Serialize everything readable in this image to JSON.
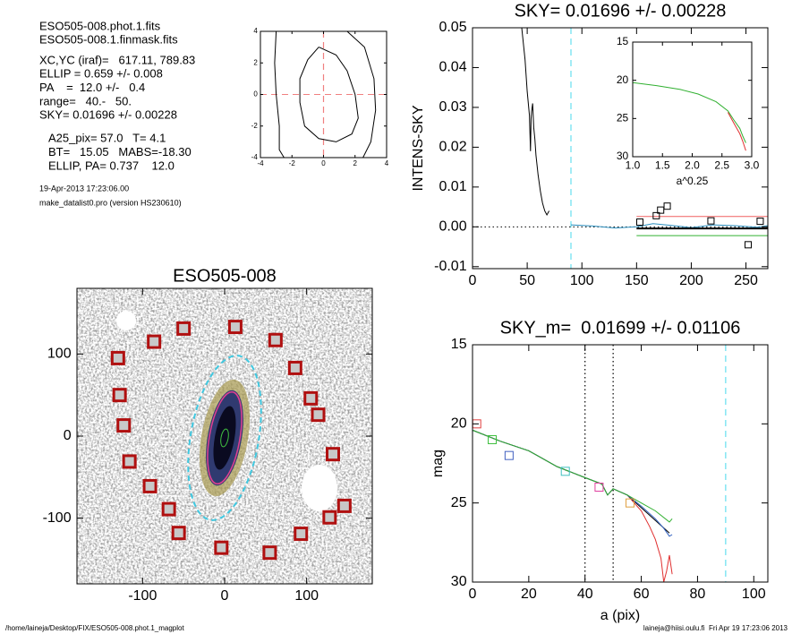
{
  "info": {
    "lines": [
      "ESO505-008.phot.1.fits",
      "ESO505-008.1.finmask.fits",
      "XC,YC (iraf)=   617.11, 789.83",
      "ELLIP = 0.659 +/- 0.008",
      "PA    =  12.0 +/-   0.4",
      "range=   40.-   50.",
      "SKY= 0.01696 +/- 0.00228"
    ],
    "params": [
      "A25_pix= 57.0   T= 4.1",
      "BT=   15.05   MABS=-18.30",
      "ELLIP, PA= 0.737    12.0"
    ],
    "date": "19-Apr-2013 17:23:06.00",
    "program": "make_datalist0.pro (version HS230610)"
  },
  "footer": {
    "left": "/home/laineja/Desktop/FIX/ESO505-008.phot.1_magplot",
    "right": "laineja@hiisi.oulu.fi  Fri Apr 19 17:23:06 2013"
  },
  "chart_data": [
    {
      "type": "contour",
      "xlim": [
        -4,
        4
      ],
      "ylim": [
        -4,
        4
      ],
      "xticks": [
        -4,
        -2,
        0,
        2,
        4
      ],
      "yticks": [
        -4,
        -2,
        0,
        2,
        4
      ],
      "vlines": [
        {
          "x": 0,
          "color": "#f08080",
          "dash": "dashed"
        }
      ],
      "hlines": [
        {
          "y": 0,
          "color": "#f08080",
          "dash": "dashed"
        }
      ],
      "series": [
        {
          "style": "line",
          "color": "#000000",
          "x": [
            -0.3,
            0.8,
            1.5,
            2.0,
            2.2,
            1.8,
            0.8,
            -0.3,
            -1.2,
            -1.5,
            -1.5,
            -1.0,
            -0.3
          ],
          "y": [
            3.0,
            2.5,
            1.5,
            0,
            -1.5,
            -2.5,
            -3.0,
            -2.8,
            -2.0,
            -0.5,
            1.0,
            2.2,
            3.0
          ]
        },
        {
          "style": "line",
          "color": "#000000",
          "x": [
            -3.0,
            -3.1,
            -3.0,
            -2.8,
            -2.8,
            -2.5
          ],
          "y": [
            4,
            2,
            0,
            -2,
            -3.5,
            -4
          ]
        },
        {
          "style": "line",
          "color": "#000000",
          "x": [
            1.5,
            2.6,
            3.2,
            3.3,
            3.0,
            2.5
          ],
          "y": [
            4,
            3,
            1,
            -1,
            -3,
            -4
          ]
        }
      ]
    },
    {
      "type": "line",
      "title": "SKY= 0.01696 +/- 0.00228",
      "ylabel": "INTENS-SKY",
      "xlim": [
        0,
        270
      ],
      "ylim": [
        -0.0105,
        0.05
      ],
      "xticks": [
        0,
        50,
        100,
        150,
        200,
        250
      ],
      "yticks": [
        -0.01,
        {
          "value": 0,
          "label": "0.00"
        },
        0.01,
        0.02,
        0.03,
        0.04,
        0.05
      ],
      "vlines": [
        {
          "x": 90,
          "color": "#66e0f0",
          "dash": "dashed"
        }
      ],
      "hlines": [
        {
          "y": 0,
          "color": "#000000",
          "dash": "dotted"
        }
      ],
      "series": [
        {
          "style": "line",
          "color": "#000000",
          "width": 1,
          "x": [
            45,
            48,
            50,
            52,
            53,
            53.5,
            54,
            55,
            56,
            57,
            58,
            60,
            62,
            64,
            66,
            68,
            70
          ],
          "y": [
            0.05,
            0.042,
            0.034,
            0.028,
            0.019,
            0.027,
            0.029,
            0.031,
            0.025,
            0.022,
            0.018,
            0.013,
            0.009,
            0.006,
            0.004,
            0.003,
            0.004
          ]
        },
        {
          "style": "line",
          "color": "#2a8fbf",
          "width": 1,
          "x": [
            90,
            110,
            130,
            150,
            165,
            180,
            200,
            220,
            240,
            260,
            270
          ],
          "y": [
            0.0005,
            0.0002,
            -0.0003,
            0,
            0.0008,
            0.0004,
            -0.0002,
            0.0005,
            0.0003,
            -0.0001,
            0.0003
          ]
        },
        {
          "style": "line",
          "color": "#f06060",
          "width": 1,
          "x": [
            150,
            270
          ],
          "y": [
            0.0026,
            0.0026
          ]
        },
        {
          "style": "line",
          "color": "#30b030",
          "width": 1,
          "x": [
            150,
            270
          ],
          "y": [
            -0.0022,
            -0.0022
          ]
        },
        {
          "style": "line",
          "color": "#000000",
          "width": 2,
          "x": [
            150,
            270
          ],
          "y": [
            -0.0004,
            -0.0004
          ]
        },
        {
          "style": "square",
          "color": "#000000",
          "x": [
            153,
            168,
            172,
            178,
            218,
            252,
            263
          ],
          "y": [
            0.0012,
            0.0028,
            0.0042,
            0.0052,
            0.0015,
            -0.0045,
            0.0014
          ]
        }
      ]
    },
    {
      "type": "line",
      "xlabel": "a^0.25",
      "xlim": [
        1,
        3
      ],
      "ylim": [
        30,
        15
      ],
      "xticks": [
        {
          "value": 1,
          "label": "1.0"
        },
        1.5,
        {
          "value": 2,
          "label": "2.0"
        },
        2.5,
        {
          "value": 3,
          "label": "3.0"
        }
      ],
      "yticks": [
        15,
        20,
        25,
        30
      ],
      "series": [
        {
          "style": "line",
          "color": "#30b030",
          "width": 1,
          "x": [
            1.0,
            1.4,
            1.8,
            2.1,
            2.4,
            2.6,
            2.7,
            2.8,
            2.85,
            2.9
          ],
          "y": [
            20.3,
            20.7,
            21.2,
            21.8,
            22.8,
            24.0,
            25.2,
            26.3,
            27.3,
            28.2
          ]
        },
        {
          "style": "line",
          "color": "#e03030",
          "width": 1,
          "x": [
            2.6,
            2.7,
            2.8,
            2.85,
            2.9
          ],
          "y": [
            24.2,
            25.6,
            27.0,
            28.0,
            29.2
          ]
        }
      ]
    },
    {
      "type": "image",
      "title": "ESO505-008",
      "xlim": [
        -180,
        180
      ],
      "ylim": [
        -180,
        180
      ],
      "xticks": [
        -100,
        0,
        100
      ],
      "yticks": [
        -100,
        0,
        100
      ],
      "series": [
        {
          "style": "square",
          "color": "#b01010",
          "x": [
            13,
            62,
            86,
            105,
            114,
            132,
            146,
            128,
            93,
            55,
            -4,
            -56,
            -68,
            -91,
            -116,
            -123,
            -128,
            -130,
            -86,
            -50
          ],
          "y": [
            133,
            117,
            83,
            46,
            26,
            -22,
            -85,
            -99,
            -119,
            -142,
            -136,
            -118,
            -89,
            -61,
            -31,
            13,
            50,
            95,
            115,
            131
          ]
        }
      ]
    },
    {
      "type": "line",
      "title": "SKY_m=  0.01699 +/- 0.01106",
      "xlabel": "a (pix)",
      "ylabel": "mag",
      "xlim": [
        0,
        105
      ],
      "ylim": [
        30,
        15
      ],
      "xticks": [
        0,
        20,
        40,
        60,
        80,
        100
      ],
      "yticks": [
        15,
        20,
        25,
        30
      ],
      "vlines": [
        {
          "x": 40,
          "color": "#000000",
          "dash": "dotted"
        },
        {
          "x": 50,
          "color": "#000000",
          "dash": "dotted"
        },
        {
          "x": 90,
          "color": "#66e0f0",
          "dash": "dashed"
        }
      ],
      "series": [
        {
          "style": "line",
          "color": "#e03030",
          "width": 1,
          "x": [
            0,
            10,
            20,
            30,
            40,
            46,
            48,
            50,
            55,
            60,
            63,
            65,
            67,
            68,
            69,
            70,
            71
          ],
          "y": [
            20.4,
            21.1,
            21.7,
            22.7,
            23.4,
            23.8,
            24.5,
            24.1,
            24.5,
            25.5,
            26.5,
            27.3,
            28.5,
            30,
            29.3,
            28.3,
            29.5
          ]
        },
        {
          "style": "line",
          "color": "#000000",
          "width": 1,
          "x": [
            0,
            10,
            20,
            30,
            40,
            46,
            48,
            50,
            55,
            60,
            65,
            70
          ],
          "y": [
            20.4,
            21.1,
            21.7,
            22.7,
            23.4,
            23.8,
            24.5,
            24.1,
            24.5,
            25.3,
            26.1,
            26.9
          ]
        },
        {
          "style": "line",
          "color": "#3060c0",
          "width": 1,
          "x": [
            0,
            10,
            20,
            30,
            40,
            46,
            48,
            50,
            55,
            60,
            65,
            68,
            70,
            71
          ],
          "y": [
            20.4,
            21.1,
            21.7,
            22.7,
            23.4,
            23.8,
            24.5,
            24.1,
            24.5,
            25.2,
            26.0,
            26.6,
            27.1,
            27.0
          ]
        },
        {
          "style": "line",
          "color": "#30b030",
          "width": 1,
          "x": [
            0,
            10,
            20,
            30,
            40,
            46,
            48,
            50,
            55,
            60,
            65,
            70,
            71
          ],
          "y": [
            20.4,
            21.1,
            21.7,
            22.7,
            23.4,
            23.8,
            24.5,
            24.1,
            24.5,
            25.0,
            25.5,
            26.2,
            26.0
          ]
        },
        {
          "style": "square",
          "colors": [
            "#e04040",
            "#40c040",
            "#4060c0",
            "#40c0c0",
            "#e040a0",
            "#e0a040"
          ],
          "x": [
            1.5,
            7,
            13,
            33,
            45,
            56
          ],
          "y": [
            20,
            21,
            22,
            23,
            24,
            25
          ]
        }
      ]
    }
  ]
}
